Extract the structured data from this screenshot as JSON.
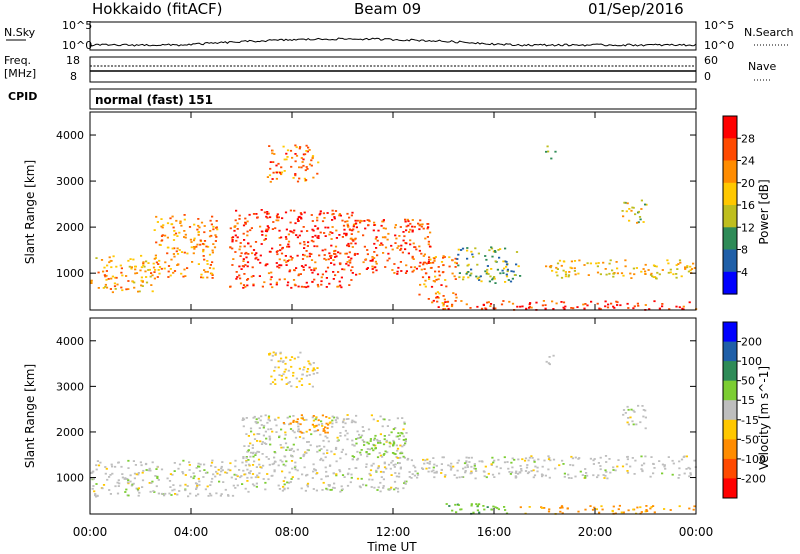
{
  "header": {
    "title": "Hokkaido (fitACF)",
    "beam": "Beam 09",
    "date": "01/Sep/2016"
  },
  "nsky": {
    "label": "N.Sky",
    "right_label": "N.Search",
    "ticks": [
      "10^5",
      "10^0"
    ],
    "right_ticks": [
      "10^5",
      "10^0"
    ]
  },
  "freq": {
    "label_line1": "Freq.",
    "label_line2": "[MHz]",
    "ticks": [
      "18",
      "8"
    ],
    "right_ticks": [
      "60",
      "0"
    ],
    "right_label": "Nave"
  },
  "cpid": {
    "label": "CPID",
    "text": "normal (fast) 151"
  },
  "time_axis": {
    "label": "Time UT",
    "ticks": [
      "00:00",
      "04:00",
      "08:00",
      "12:00",
      "16:00",
      "20:00",
      "00:00"
    ]
  },
  "chart_data": [
    {
      "type": "heatmap",
      "title": "Power",
      "xlabel": "Time UT",
      "ylabel": "Slant Range [km]",
      "xlim": [
        0,
        24
      ],
      "ylim": [
        200,
        4500
      ],
      "yticks": [
        "1000",
        "2000",
        "3000",
        "4000"
      ],
      "colorbar": {
        "label": "Power [dB]",
        "ticks": [
          "28",
          "24",
          "20",
          "16",
          "12",
          "8",
          "4"
        ],
        "colors": [
          "#ff0000",
          "#ff4a00",
          "#ff8c00",
          "#ffc800",
          "#bebe1e",
          "#2e8b57",
          "#1f5fa8",
          "#0000ff"
        ]
      },
      "regions": [
        {
          "t0": 0.0,
          "t1": 2.5,
          "r0": 600,
          "r1": 1400,
          "value": 20
        },
        {
          "t0": 2.5,
          "t1": 5.0,
          "r0": 900,
          "r1": 2300,
          "value": 22
        },
        {
          "t0": 5.5,
          "t1": 10.5,
          "r0": 700,
          "r1": 2400,
          "value": 28
        },
        {
          "t0": 7.0,
          "t1": 9.0,
          "r0": 3000,
          "r1": 3800,
          "value": 24
        },
        {
          "t0": 10.0,
          "t1": 13.5,
          "r0": 1000,
          "r1": 2200,
          "value": 26
        },
        {
          "t0": 13.0,
          "t1": 14.5,
          "r0": 300,
          "r1": 1400,
          "value": 24
        },
        {
          "t0": 14.5,
          "t1": 17.0,
          "r0": 800,
          "r1": 1600,
          "value": 12
        },
        {
          "t0": 18.0,
          "t1": 24.0,
          "r0": 900,
          "r1": 1300,
          "value": 18
        },
        {
          "t0": 21.0,
          "t1": 22.0,
          "r0": 2100,
          "r1": 2600,
          "value": 16
        },
        {
          "t0": 18.0,
          "t1": 18.4,
          "r0": 3500,
          "r1": 3800,
          "value": 12
        },
        {
          "t0": 13.5,
          "t1": 24.0,
          "r0": 220,
          "r1": 420,
          "value": 28
        }
      ]
    },
    {
      "type": "heatmap",
      "title": "Velocity",
      "xlabel": "Time UT",
      "ylabel": "Slant Range [km]",
      "xlim": [
        0,
        24
      ],
      "ylim": [
        200,
        4500
      ],
      "yticks": [
        "1000",
        "2000",
        "3000",
        "4000"
      ],
      "colorbar": {
        "label": "Velocity [m s^-1]",
        "ticks": [
          "200",
          "100",
          "50",
          "15",
          "-15",
          "-50",
          "-100",
          "-200"
        ],
        "colors": [
          "#0000ff",
          "#1f5fa8",
          "#2e8b57",
          "#7ccd32",
          "#bebebe",
          "#ffc800",
          "#ff8c00",
          "#ff4a00",
          "#ff0000"
        ]
      },
      "regions": [
        {
          "t0": 0.0,
          "t1": 6.0,
          "r0": 600,
          "r1": 1400,
          "value": 0
        },
        {
          "t0": 6.0,
          "t1": 12.5,
          "r0": 700,
          "r1": 2400,
          "value": 0
        },
        {
          "t0": 7.5,
          "t1": 9.5,
          "r0": 2000,
          "r1": 2400,
          "value": -60
        },
        {
          "t0": 7.0,
          "t1": 9.0,
          "r0": 3000,
          "r1": 3800,
          "value": -20
        },
        {
          "t0": 10.5,
          "t1": 12.5,
          "r0": 1500,
          "r1": 2000,
          "value": 30
        },
        {
          "t0": 12.5,
          "t1": 24.0,
          "r0": 1000,
          "r1": 1500,
          "value": 0
        },
        {
          "t0": 14.0,
          "t1": 17.0,
          "r0": 220,
          "r1": 450,
          "value": 40
        },
        {
          "t0": 17.0,
          "t1": 24.0,
          "r0": 220,
          "r1": 400,
          "value": -60
        },
        {
          "t0": 18.0,
          "t1": 18.4,
          "r0": 3500,
          "r1": 3800,
          "value": 0
        },
        {
          "t0": 21.0,
          "t1": 22.0,
          "r0": 2100,
          "r1": 2600,
          "value": 0
        }
      ]
    }
  ]
}
